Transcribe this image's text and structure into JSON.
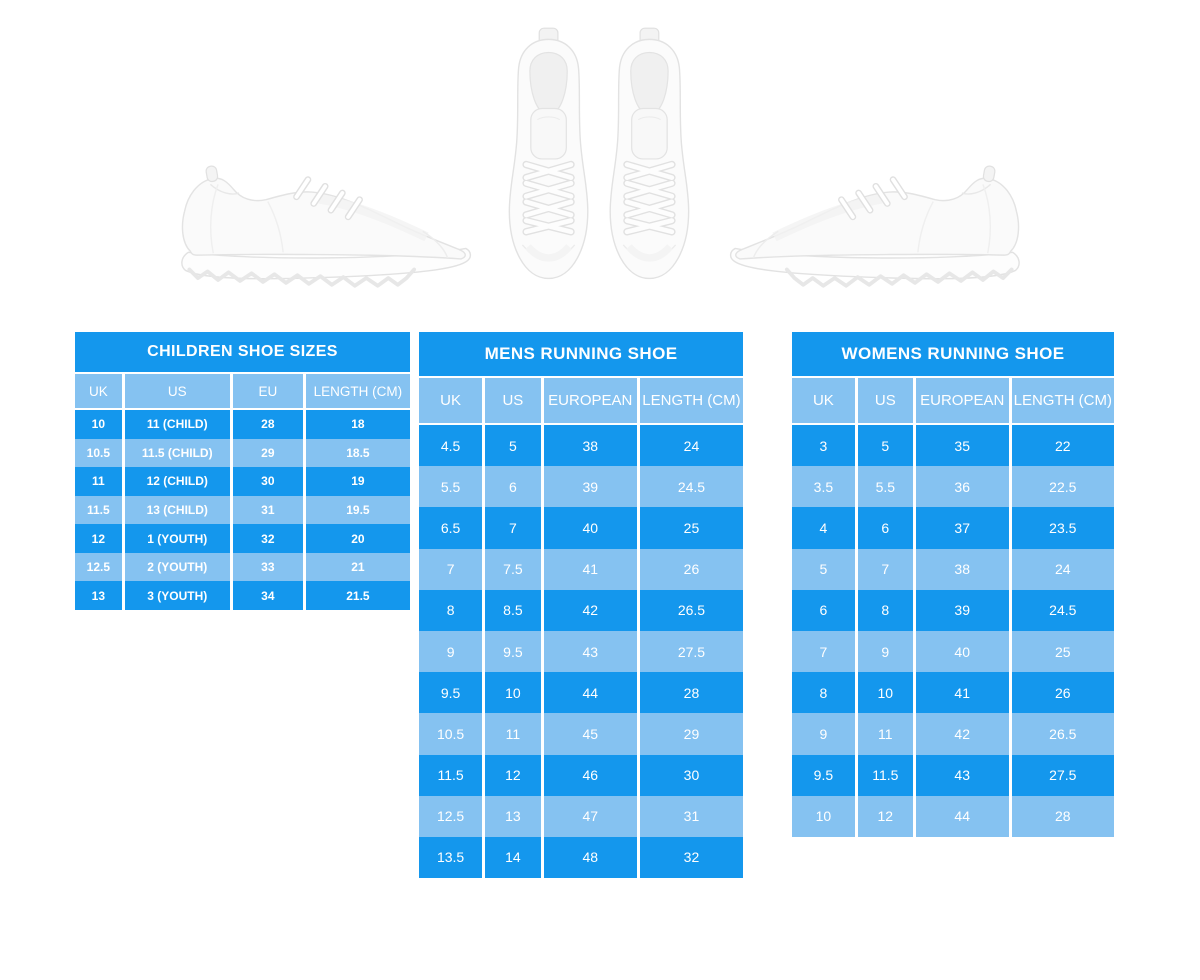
{
  "colors": {
    "row_dark": "#1497ed",
    "row_light": "#85c2f1",
    "table_text": "#ffffff",
    "background": "#ffffff"
  },
  "images": {
    "left_shoe": "white-running-sneaker-side-view-facing-right",
    "center_shoes": "white-running-sneaker-pair-top-view",
    "right_shoe": "white-running-sneaker-side-view-facing-left"
  },
  "chart_data": [
    {
      "type": "table",
      "title": "CHILDREN SHOE SIZES",
      "columns": [
        "UK",
        "US",
        "EU",
        "LENGTH (CM)"
      ],
      "rows": [
        [
          "10",
          "11 (CHILD)",
          "28",
          "18"
        ],
        [
          "10.5",
          "11.5 (CHILD)",
          "29",
          "18.5"
        ],
        [
          "11",
          "12 (CHILD)",
          "30",
          "19"
        ],
        [
          "11.5",
          "13 (CHILD)",
          "31",
          "19.5"
        ],
        [
          "12",
          "1 (YOUTH)",
          "32",
          "20"
        ],
        [
          "12.5",
          "2 (YOUTH)",
          "33",
          "21"
        ],
        [
          "13",
          "3 (YOUTH)",
          "34",
          "21.5"
        ]
      ]
    },
    {
      "type": "table",
      "title": "MENS RUNNING SHOE",
      "columns": [
        "UK",
        "US",
        "EUROPEAN",
        "LENGTH (CM)"
      ],
      "rows": [
        [
          "4.5",
          "5",
          "38",
          "24"
        ],
        [
          "5.5",
          "6",
          "39",
          "24.5"
        ],
        [
          "6.5",
          "7",
          "40",
          "25"
        ],
        [
          "7",
          "7.5",
          "41",
          "26"
        ],
        [
          "8",
          "8.5",
          "42",
          "26.5"
        ],
        [
          "9",
          "9.5",
          "43",
          "27.5"
        ],
        [
          "9.5",
          "10",
          "44",
          "28"
        ],
        [
          "10.5",
          "11",
          "45",
          "29"
        ],
        [
          "11.5",
          "12",
          "46",
          "30"
        ],
        [
          "12.5",
          "13",
          "47",
          "31"
        ],
        [
          "13.5",
          "14",
          "48",
          "32"
        ]
      ]
    },
    {
      "type": "table",
      "title": "WOMENS RUNNING SHOE",
      "columns": [
        "UK",
        "US",
        "EUROPEAN",
        "LENGTH (CM)"
      ],
      "rows": [
        [
          "3",
          "5",
          "35",
          "22"
        ],
        [
          "3.5",
          "5.5",
          "36",
          "22.5"
        ],
        [
          "4",
          "6",
          "37",
          "23.5"
        ],
        [
          "5",
          "7",
          "38",
          "24"
        ],
        [
          "6",
          "8",
          "39",
          "24.5"
        ],
        [
          "7",
          "9",
          "40",
          "25"
        ],
        [
          "8",
          "10",
          "41",
          "26"
        ],
        [
          "9",
          "11",
          "42",
          "26.5"
        ],
        [
          "9.5",
          "11.5",
          "43",
          "27.5"
        ],
        [
          "10",
          "12",
          "44",
          "28"
        ]
      ]
    }
  ]
}
